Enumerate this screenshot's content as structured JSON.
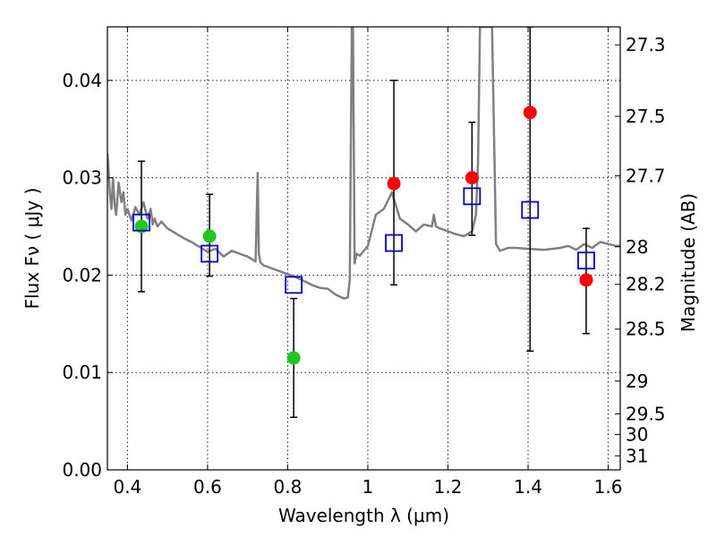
{
  "chart_data": {
    "type": "scatter",
    "xlabel": "Wavelength  λ (μm)",
    "ylabel": "Flux  Fν  ( μJy )",
    "ylabel_right": "Magnitude (AB)",
    "xlim": [
      0.35,
      1.63
    ],
    "ylim": [
      0.0,
      0.0455
    ],
    "grid": true,
    "x_ticks": [
      0.4,
      0.6,
      0.8,
      1.0,
      1.2,
      1.4,
      1.6
    ],
    "x_tick_labels": [
      "0.4",
      "0.6",
      "0.8",
      "1",
      "1.2",
      "1.4",
      "1.6"
    ],
    "y_ticks": [
      0.0,
      0.01,
      0.02,
      0.03,
      0.04
    ],
    "y_tick_labels": [
      "0.00",
      "0.01",
      "0.02",
      "0.03",
      "0.04"
    ],
    "mag_ticks": [
      27.3,
      27.5,
      27.7,
      28,
      28.2,
      28.5,
      29,
      29.5,
      30,
      31
    ],
    "mag_tick_labels": [
      "27.3",
      "27.5",
      "27.7",
      "28",
      "28.2",
      "28.5",
      "29",
      "29.5",
      "30",
      "31"
    ],
    "colors": {
      "model": "#808080",
      "green": "#1fc81f",
      "red": "#ff0000",
      "square": "#0000cc",
      "errorbar": "#000000"
    },
    "model_spectrum": {
      "x": [
        0.35,
        0.352,
        0.356,
        0.36,
        0.364,
        0.368,
        0.372,
        0.378,
        0.385,
        0.39,
        0.395,
        0.4,
        0.41,
        0.42,
        0.43,
        0.44,
        0.45,
        0.458,
        0.463,
        0.468,
        0.475,
        0.485,
        0.5,
        0.52,
        0.54,
        0.56,
        0.58,
        0.6,
        0.62,
        0.64,
        0.66,
        0.68,
        0.7,
        0.72,
        0.725,
        0.728,
        0.732,
        0.74,
        0.76,
        0.78,
        0.8,
        0.82,
        0.84,
        0.86,
        0.88,
        0.9,
        0.92,
        0.94,
        0.95,
        0.955,
        0.96,
        0.963,
        0.967,
        0.972,
        0.98,
        1.0,
        1.02,
        1.04,
        1.06,
        1.08,
        1.1,
        1.12,
        1.14,
        1.16,
        1.165,
        1.17,
        1.18,
        1.2,
        1.22,
        1.24,
        1.26,
        1.27,
        1.275,
        1.28,
        1.29,
        1.3,
        1.31,
        1.32,
        1.33,
        1.35,
        1.37,
        1.4,
        1.44,
        1.48,
        1.5,
        1.52,
        1.54,
        1.56,
        1.58,
        1.6,
        1.62,
        1.63
      ],
      "y": [
        0.0325,
        0.0315,
        0.0285,
        0.0268,
        0.03,
        0.0272,
        0.0262,
        0.0295,
        0.0275,
        0.0285,
        0.0262,
        0.0268,
        0.0256,
        0.027,
        0.0262,
        0.0275,
        0.0258,
        0.0268,
        0.0252,
        0.0258,
        0.025,
        0.0255,
        0.0248,
        0.0243,
        0.0238,
        0.0234,
        0.0229,
        0.0224,
        0.0227,
        0.0219,
        0.0225,
        0.0222,
        0.0219,
        0.0214,
        0.0305,
        0.0222,
        0.0213,
        0.021,
        0.0207,
        0.0204,
        0.0201,
        0.0198,
        0.0194,
        0.019,
        0.0187,
        0.0186,
        0.018,
        0.0176,
        0.0177,
        0.0195,
        0.0455,
        0.0455,
        0.0212,
        0.0222,
        0.022,
        0.023,
        0.0262,
        0.0268,
        0.0285,
        0.0258,
        0.0252,
        0.0245,
        0.0252,
        0.025,
        0.0262,
        0.025,
        0.0248,
        0.0245,
        0.0242,
        0.024,
        0.0245,
        0.0262,
        0.0315,
        0.0455,
        0.0455,
        0.0455,
        0.0455,
        0.0232,
        0.0225,
        0.0228,
        0.0228,
        0.0227,
        0.0226,
        0.0228,
        0.023,
        0.0226,
        0.0232,
        0.0228,
        0.0234,
        0.0232,
        0.023,
        0.023
      ]
    },
    "series": [
      {
        "marker": "circle",
        "color": "#1fc81f",
        "points": [
          {
            "x": 0.435,
            "y": 0.025,
            "yerr": [
              0.0183,
              0.0317
            ]
          },
          {
            "x": 0.605,
            "y": 0.024,
            "yerr": [
              0.0199,
              0.0283
            ]
          },
          {
            "x": 0.815,
            "y": 0.0115,
            "yerr": [
              0.0054,
              0.0176
            ]
          }
        ]
      },
      {
        "marker": "circle",
        "color": "#ff0000",
        "points": [
          {
            "x": 1.065,
            "y": 0.0294,
            "yerr": [
              0.019,
              0.04
            ]
          },
          {
            "x": 1.26,
            "y": 0.03,
            "yerr": [
              0.0241,
              0.0357
            ]
          },
          {
            "x": 1.405,
            "y": 0.0367,
            "yerr": [
              0.0122,
              0.0455
            ]
          },
          {
            "x": 1.545,
            "y": 0.0195,
            "yerr": [
              0.014,
              0.0248
            ]
          }
        ]
      },
      {
        "marker": "square",
        "color": "#0000cc",
        "points": [
          {
            "x": 0.435,
            "y": 0.0254
          },
          {
            "x": 0.605,
            "y": 0.0222
          },
          {
            "x": 0.815,
            "y": 0.019
          },
          {
            "x": 1.065,
            "y": 0.0233
          },
          {
            "x": 1.26,
            "y": 0.0281
          },
          {
            "x": 1.405,
            "y": 0.0267
          },
          {
            "x": 1.545,
            "y": 0.0215
          }
        ]
      }
    ]
  }
}
